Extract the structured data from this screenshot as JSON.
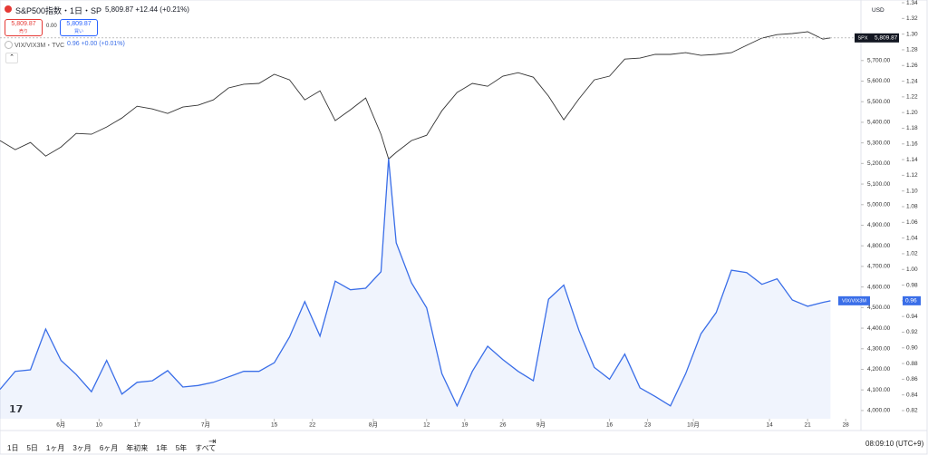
{
  "header": {
    "title": "S&P500指数・1日・SP",
    "quote": "5,809.87 +12.44 (+0.21%)",
    "sell_price": "5,809.87",
    "sell_label": "売り",
    "spread": "0.00",
    "buy_price": "5,809.87",
    "buy_label": "買い",
    "indicator": "VIX/VIX3M・TVC",
    "indicator_value": "0.96 +0.00 (+0.01%)",
    "currency": "USD"
  },
  "toolbar": {
    "ranges": [
      "1日",
      "5日",
      "1ヶ月",
      "3ヶ月",
      "6ヶ月",
      "年初来",
      "1年",
      "5年",
      "すべて"
    ],
    "time": "08:09:10 (UTC+9)"
  },
  "chart_data": {
    "type": "line",
    "x": [
      0,
      2,
      4,
      6,
      8,
      10,
      12,
      14,
      16,
      18,
      20,
      22,
      24,
      26,
      28,
      30,
      32,
      34,
      36,
      38,
      40,
      42,
      44,
      46,
      48,
      50,
      51,
      52,
      54,
      56,
      58,
      60,
      62,
      64,
      66,
      68,
      70,
      72,
      74,
      76,
      78,
      80,
      82,
      84,
      86,
      88,
      90,
      92,
      94,
      96,
      98,
      100,
      102,
      104,
      106,
      108,
      109
    ],
    "xlim": [
      0,
      113
    ],
    "xticks": [
      {
        "value": 8,
        "label": "6月"
      },
      {
        "value": 13,
        "label": "10"
      },
      {
        "value": 18,
        "label": "17"
      },
      {
        "value": 27,
        "label": "7月"
      },
      {
        "value": 36,
        "label": "15"
      },
      {
        "value": 41,
        "label": "22"
      },
      {
        "value": 49,
        "label": "8月"
      },
      {
        "value": 56,
        "label": "12"
      },
      {
        "value": 61,
        "label": "19"
      },
      {
        "value": 66,
        "label": "26"
      },
      {
        "value": 71,
        "label": "9月"
      },
      {
        "value": 80,
        "label": "16"
      },
      {
        "value": 85,
        "label": "23"
      },
      {
        "value": 91,
        "label": "10月"
      },
      {
        "value": 101,
        "label": "14"
      },
      {
        "value": 106,
        "label": "21"
      },
      {
        "value": 111,
        "label": "28"
      }
    ],
    "ylim": [
      3960,
      5994
    ],
    "yticks": [
      {
        "value": 4000,
        "label": "4,000.00"
      },
      {
        "value": 4100,
        "label": "4,100.00"
      },
      {
        "value": 4200,
        "label": "4,200.00"
      },
      {
        "value": 4300,
        "label": "4,300.00"
      },
      {
        "value": 4400,
        "label": "4,400.00"
      },
      {
        "value": 4500,
        "label": "4,500.00"
      },
      {
        "value": 4600,
        "label": "4,600.00"
      },
      {
        "value": 4700,
        "label": "4,700.00"
      },
      {
        "value": 4800,
        "label": "4,800.00"
      },
      {
        "value": 4900,
        "label": "4,900.00"
      },
      {
        "value": 5000,
        "label": "5,000.00"
      },
      {
        "value": 5100,
        "label": "5,100.00"
      },
      {
        "value": 5200,
        "label": "5,200.00"
      },
      {
        "value": 5300,
        "label": "5,300.00"
      },
      {
        "value": 5400,
        "label": "5,400.00"
      },
      {
        "value": 5500,
        "label": "5,500.00"
      },
      {
        "value": 5600,
        "label": "5,600.00"
      },
      {
        "value": 5700,
        "label": "5,700.00"
      }
    ],
    "y2lim": [
      0.8096,
      1.3435
    ],
    "y2ticks": [
      0.82,
      0.84,
      0.86,
      0.88,
      {
        "value": 0.9,
        "label": "0.90"
      },
      0.92,
      0.94,
      0.96,
      0.98,
      {
        "value": 1,
        "label": "1.00"
      },
      1.02,
      1.04,
      1.06,
      1.08,
      {
        "value": 1.1,
        "label": "1.10"
      },
      1.12,
      1.14,
      1.16,
      1.18,
      {
        "value": 1.2,
        "label": "1.20"
      },
      1.22,
      1.24,
      1.26,
      1.28,
      {
        "value": 1.3,
        "label": "1.30"
      },
      1.32,
      1.34
    ],
    "series": [
      {
        "name": "SPX",
        "color": "#333333",
        "axis": "y",
        "values": [
          5311,
          5267,
          5302,
          5236,
          5280,
          5346,
          5342,
          5377,
          5421,
          5478,
          5465,
          5443,
          5474,
          5483,
          5509,
          5567,
          5585,
          5589,
          5633,
          5606,
          5509,
          5553,
          5408,
          5461,
          5518,
          5342,
          5222,
          5254,
          5311,
          5337,
          5456,
          5545,
          5589,
          5575,
          5624,
          5641,
          5619,
          5527,
          5412,
          5514,
          5606,
          5624,
          5707,
          5712,
          5730,
          5730,
          5738,
          5725,
          5730,
          5738,
          5774,
          5809,
          5826,
          5831,
          5840,
          5804,
          5809.87
        ],
        "tag_label": "5,809.87"
      },
      {
        "name": "VIX/VIX3M",
        "color": "#3a6ee8",
        "axis": "y2",
        "values": [
          0.847,
          0.87,
          0.872,
          0.924,
          0.884,
          0.866,
          0.844,
          0.884,
          0.841,
          0.856,
          0.858,
          0.871,
          0.85,
          0.852,
          0.856,
          0.863,
          0.87,
          0.87,
          0.881,
          0.914,
          0.959,
          0.915,
          0.985,
          0.974,
          0.976,
          0.997,
          1.141,
          1.034,
          0.983,
          0.951,
          0.867,
          0.826,
          0.87,
          0.902,
          0.885,
          0.87,
          0.858,
          0.962,
          0.98,
          0.922,
          0.875,
          0.86,
          0.892,
          0.849,
          0.838,
          0.826,
          0.867,
          0.918,
          0.945,
          0.999,
          0.996,
          0.981,
          0.988,
          0.961,
          0.953,
          0.958,
          0.96
        ],
        "tag_label": "0.96"
      }
    ]
  }
}
